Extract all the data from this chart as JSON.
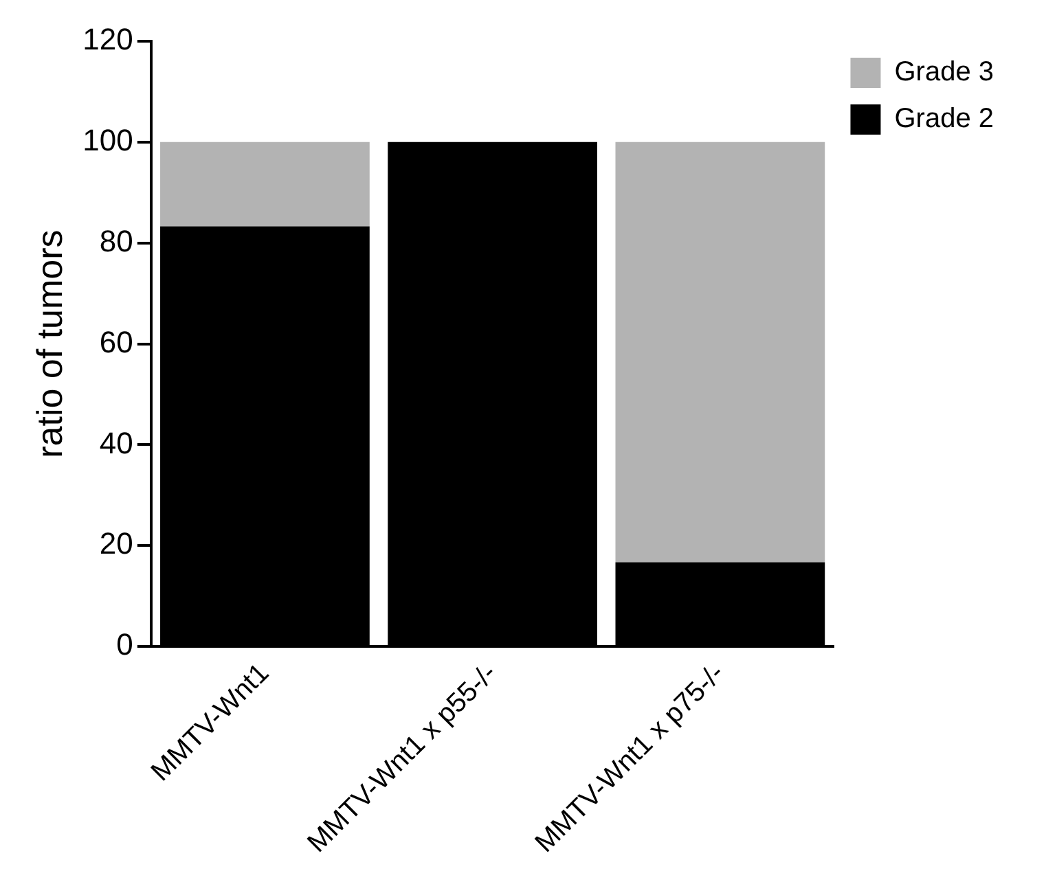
{
  "chart_data": {
    "type": "bar",
    "ylabel": "ratio of tumors",
    "categories": [
      "MMTV-Wnt1",
      "MMTV-Wnt1 x p55-/-",
      "MMTV-Wnt1 x p75-/-"
    ],
    "stacked": true,
    "series": [
      {
        "name": "Grade 2",
        "color": "#000000",
        "values": [
          83.3,
          100,
          16.7
        ]
      },
      {
        "name": "Grade 3",
        "color": "#b3b3b3",
        "values": [
          16.7,
          0,
          83.3
        ]
      }
    ],
    "ylim": [
      0,
      120
    ],
    "yticks": [
      0,
      20,
      40,
      60,
      80,
      100,
      120
    ],
    "grid": false,
    "legend": "top right"
  }
}
